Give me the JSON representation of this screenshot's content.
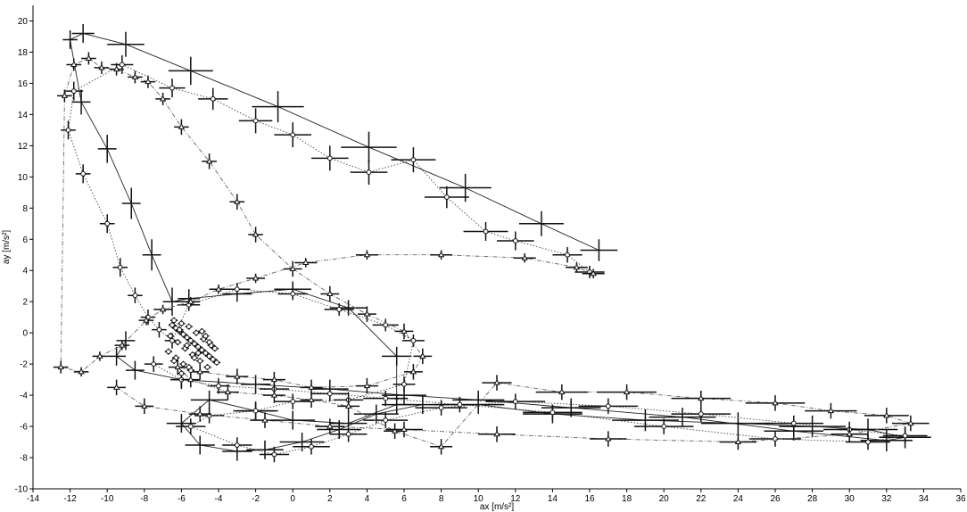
{
  "chart_data": {
    "type": "scatter",
    "xlabel": "ax [m/s²]",
    "ylabel": "ay [m/s²]",
    "xlim": [
      -14,
      36
    ],
    "ylim": [
      -10,
      21
    ],
    "xticks": [
      -14,
      -12,
      -10,
      -8,
      -6,
      -4,
      -2,
      0,
      2,
      4,
      6,
      8,
      10,
      12,
      14,
      16,
      18,
      20,
      22,
      24,
      26,
      28,
      30,
      32,
      34,
      36
    ],
    "yticks": [
      -10,
      -8,
      -6,
      -4,
      -2,
      0,
      2,
      4,
      6,
      8,
      10,
      12,
      14,
      16,
      18,
      20
    ],
    "grid": false,
    "legend": "none",
    "series": [
      {
        "marker": "plus",
        "line_style": "solid",
        "color": "#222222",
        "x": [
          16.5,
          13.4,
          9.3,
          4.1,
          -0.8,
          -5.5,
          -9.0,
          -11.3,
          -12.0,
          -11.4,
          -10.0,
          -8.7,
          -7.6,
          -6.5,
          -5.6,
          -3.0,
          0.0,
          3.0,
          5.6,
          5.6,
          3.0,
          0.0,
          -2.0,
          -4.5,
          -6.0,
          -5.0,
          -3.0,
          -1.5,
          0.5,
          2.5,
          4.5,
          7.0,
          10.0,
          14.0,
          19.0,
          24.0,
          28.0,
          31.0,
          33.0,
          32.0,
          27.0,
          21.0,
          15.0,
          10.0,
          6.0,
          2.0,
          -2.0,
          -6.0,
          -8.5,
          -9.5,
          -9.0
        ],
        "y": [
          5.3,
          7.0,
          9.3,
          11.9,
          14.5,
          16.8,
          18.5,
          19.2,
          18.8,
          14.8,
          11.8,
          8.3,
          5.0,
          2.0,
          2.2,
          2.5,
          2.8,
          1.6,
          -1.5,
          -4.6,
          -5.8,
          -5.6,
          -5.0,
          -4.3,
          -5.8,
          -7.2,
          -7.6,
          -7.5,
          -7.0,
          -6.2,
          -5.2,
          -4.6,
          -4.6,
          -5.2,
          -5.6,
          -5.8,
          -6.0,
          -6.2,
          -6.7,
          -6.9,
          -6.3,
          -5.4,
          -4.8,
          -4.3,
          -4.0,
          -3.6,
          -3.3,
          -3.0,
          -2.4,
          -1.5,
          -0.5
        ],
        "xerr": [
          1.0,
          1.2,
          1.4,
          1.5,
          1.4,
          1.2,
          1.0,
          0.6,
          0.4,
          0.5,
          0.5,
          0.5,
          0.5,
          0.5,
          0.6,
          0.8,
          1.0,
          1.0,
          0.8,
          0.8,
          1.0,
          1.2,
          1.2,
          1.0,
          0.8,
          0.8,
          0.8,
          1.0,
          1.2,
          1.2,
          1.2,
          1.4,
          1.4,
          1.6,
          1.8,
          2.0,
          1.8,
          1.6,
          1.4,
          1.4,
          1.6,
          1.8,
          1.6,
          1.4,
          1.2,
          1.0,
          0.8,
          0.6,
          0.5,
          0.5,
          0.5
        ],
        "yerr": [
          0.7,
          0.8,
          0.9,
          1.0,
          1.0,
          0.9,
          0.8,
          0.6,
          0.6,
          0.8,
          0.9,
          1.0,
          1.0,
          0.9,
          0.6,
          0.5,
          0.5,
          0.5,
          0.6,
          0.6,
          0.6,
          0.6,
          0.6,
          0.6,
          0.6,
          0.6,
          0.6,
          0.6,
          0.6,
          0.6,
          0.6,
          0.6,
          0.6,
          0.6,
          0.7,
          0.7,
          0.7,
          0.7,
          0.7,
          0.7,
          0.6,
          0.6,
          0.6,
          0.6,
          0.6,
          0.6,
          0.6,
          0.6,
          0.6,
          0.6,
          0.6
        ]
      },
      {
        "marker": "circle",
        "line_style": "dotted",
        "color": "#444444",
        "x": [
          16.0,
          14.8,
          12.0,
          10.4,
          8.3,
          6.5,
          4.1,
          2.0,
          0.0,
          -2.0,
          -4.3,
          -6.5,
          -9.2,
          -11.8,
          -12.1,
          -11.3,
          -10.0,
          -9.3,
          -8.5,
          -7.8,
          -7.2,
          -6.5,
          -5.6,
          -3.0,
          0.0,
          2.5,
          5.0,
          6.5,
          6.0,
          3.0,
          0.0,
          -2.0,
          -4.5,
          -5.5,
          -3.0,
          -1.0,
          1.0,
          3.0,
          5.0,
          8.0,
          12.0,
          17.0,
          22.0,
          27.0,
          30.0,
          33.0,
          31.0,
          26.0,
          20.0,
          14.0,
          9.0,
          5.0,
          2.0,
          -1.0,
          -4.0,
          -6.0,
          -7.5
        ],
        "y": [
          3.9,
          5.0,
          5.9,
          6.5,
          8.7,
          11.1,
          10.3,
          11.2,
          12.7,
          13.6,
          15.0,
          15.7,
          17.2,
          15.5,
          13.0,
          10.2,
          7.0,
          4.2,
          2.4,
          1.0,
          0.2,
          -0.5,
          1.8,
          2.8,
          2.5,
          1.5,
          0.5,
          -0.5,
          -3.3,
          -4.3,
          -4.4,
          -5.0,
          -5.3,
          -6.0,
          -7.2,
          -7.8,
          -7.3,
          -6.5,
          -5.6,
          -4.8,
          -4.4,
          -4.7,
          -5.2,
          -5.8,
          -6.2,
          -6.6,
          -7.0,
          -6.8,
          -6.0,
          -5.1,
          -4.6,
          -4.2,
          -3.9,
          -3.6,
          -3.4,
          -3.0,
          -2.0
        ],
        "xerr": [
          0.8,
          0.8,
          1.0,
          1.2,
          1.2,
          1.2,
          1.0,
          1.0,
          1.0,
          0.9,
          0.8,
          0.7,
          0.6,
          0.5,
          0.4,
          0.4,
          0.4,
          0.4,
          0.4,
          0.4,
          0.4,
          0.4,
          0.6,
          0.7,
          0.8,
          0.8,
          0.7,
          0.6,
          0.6,
          0.8,
          1.0,
          1.0,
          0.8,
          0.8,
          0.8,
          0.8,
          1.0,
          1.0,
          1.2,
          1.4,
          1.6,
          1.6,
          1.6,
          1.6,
          1.4,
          1.2,
          1.2,
          1.4,
          1.6,
          1.6,
          1.4,
          1.2,
          1.0,
          0.8,
          0.6,
          0.5,
          0.5
        ],
        "yerr": [
          0.4,
          0.5,
          0.6,
          0.6,
          0.7,
          0.8,
          0.8,
          0.8,
          0.8,
          0.8,
          0.7,
          0.6,
          0.6,
          0.6,
          0.6,
          0.6,
          0.6,
          0.6,
          0.5,
          0.5,
          0.5,
          0.5,
          0.4,
          0.4,
          0.4,
          0.4,
          0.4,
          0.4,
          0.5,
          0.5,
          0.5,
          0.5,
          0.5,
          0.5,
          0.5,
          0.5,
          0.5,
          0.5,
          0.5,
          0.5,
          0.5,
          0.5,
          0.5,
          0.5,
          0.5,
          0.5,
          0.5,
          0.5,
          0.5,
          0.5,
          0.5,
          0.5,
          0.5,
          0.5,
          0.5,
          0.5,
          0.5
        ]
      },
      {
        "marker": "triangle",
        "line_style": "dash-dot",
        "color": "#666666",
        "x": [
          16.2,
          15.3,
          12.5,
          8.0,
          4.0,
          0.7,
          -2.0,
          -4.0,
          -5.5,
          -7.0,
          -7.9,
          -9.2,
          -10.4,
          -11.4,
          -12.5,
          -12.3,
          -11.8,
          -11.0,
          -10.3,
          -9.5,
          -8.5,
          -7.8,
          -7.0,
          -6.0,
          -4.5,
          -3.0,
          -2.0,
          0.0,
          2.0,
          4.0,
          6.0,
          7.0,
          6.5,
          4.0,
          1.0,
          -1.0,
          -3.0,
          -5.0,
          -6.2,
          -5.5,
          -3.5,
          -1.0,
          1.0,
          3.0,
          5.5,
          8.0,
          11.0,
          14.5,
          18.0,
          22.0,
          26.0,
          29.0,
          32.0,
          33.3,
          30.0,
          24.0,
          17.0,
          11.0,
          6.0,
          2.0,
          -1.5,
          -5.0,
          -8.0,
          -9.5
        ],
        "y": [
          3.8,
          4.2,
          4.8,
          5.0,
          5.0,
          4.5,
          3.5,
          2.8,
          2.0,
          1.5,
          0.8,
          -0.8,
          -1.5,
          -2.5,
          -2.2,
          15.2,
          17.2,
          17.6,
          17.0,
          16.9,
          16.4,
          16.1,
          15.0,
          13.2,
          11.0,
          8.4,
          6.3,
          4.1,
          2.5,
          1.2,
          0.1,
          -1.5,
          -2.5,
          -3.4,
          -3.5,
          -3.0,
          -2.8,
          -2.5,
          -2.2,
          -3.0,
          -3.8,
          -4.0,
          -4.3,
          -4.7,
          -6.3,
          -7.3,
          -3.2,
          -3.8,
          -3.8,
          -4.2,
          -4.5,
          -5.0,
          -5.3,
          -5.8,
          -6.5,
          -7.0,
          -6.8,
          -6.5,
          -6.2,
          -6.0,
          -5.6,
          -5.2,
          -4.7,
          -3.5
        ],
        "xerr": [
          0.6,
          0.6,
          0.6,
          0.6,
          0.6,
          0.6,
          0.5,
          0.5,
          0.5,
          0.5,
          0.4,
          0.4,
          0.4,
          0.4,
          0.4,
          0.4,
          0.4,
          0.4,
          0.4,
          0.4,
          0.4,
          0.4,
          0.4,
          0.4,
          0.4,
          0.4,
          0.4,
          0.5,
          0.5,
          0.5,
          0.5,
          0.5,
          0.5,
          0.6,
          0.6,
          0.6,
          0.6,
          0.5,
          0.5,
          0.5,
          0.6,
          0.6,
          0.6,
          0.6,
          0.6,
          0.6,
          0.8,
          1.4,
          1.6,
          1.6,
          1.6,
          1.4,
          1.2,
          1.0,
          1.0,
          1.0,
          1.0,
          1.0,
          1.0,
          0.8,
          0.8,
          0.6,
          0.5,
          0.5
        ],
        "yerr": [
          0.3,
          0.3,
          0.3,
          0.3,
          0.3,
          0.3,
          0.3,
          0.3,
          0.3,
          0.3,
          0.3,
          0.3,
          0.3,
          0.3,
          0.4,
          0.4,
          0.4,
          0.4,
          0.4,
          0.4,
          0.4,
          0.4,
          0.4,
          0.5,
          0.5,
          0.5,
          0.5,
          0.5,
          0.5,
          0.5,
          0.5,
          0.5,
          0.5,
          0.5,
          0.5,
          0.5,
          0.5,
          0.5,
          0.5,
          0.5,
          0.5,
          0.5,
          0.5,
          0.5,
          0.5,
          0.5,
          0.5,
          0.5,
          0.5,
          0.5,
          0.5,
          0.5,
          0.5,
          0.5,
          0.5,
          0.5,
          0.5,
          0.5,
          0.5,
          0.5,
          0.5,
          0.5,
          0.5,
          0.5
        ]
      },
      {
        "marker": "circle",
        "line_style": "none",
        "color": "#333333",
        "x": [
          -6.5,
          -6.3,
          -6.1,
          -5.9,
          -5.7,
          -5.5,
          -5.3,
          -5.1,
          -4.9,
          -4.7,
          -4.5,
          -4.3,
          -4.1,
          -6.6,
          -6.2,
          -5.8,
          -5.4,
          -5.0,
          -4.6,
          -4.2,
          -6.4,
          -6.0,
          -5.6,
          -5.2,
          -4.8,
          -4.4,
          -6.7,
          -6.3,
          -5.9,
          -5.5,
          -5.1,
          -4.7,
          -6.1,
          -5.7,
          -5.3,
          -4.9,
          -4.5,
          -6.4,
          -6.0,
          -5.6
        ],
        "y": [
          0.5,
          0.3,
          0.1,
          -0.1,
          -0.3,
          -0.5,
          -0.7,
          -0.9,
          -1.1,
          -1.3,
          -1.5,
          -1.7,
          -1.9,
          -0.2,
          -0.6,
          -1.0,
          -1.4,
          -1.8,
          -2.2,
          -1.0,
          0.8,
          0.6,
          0.4,
          0.0,
          -0.4,
          -0.8,
          -1.2,
          -1.6,
          -2.0,
          -2.4,
          -1.3,
          -0.2,
          0.2,
          -0.8,
          -1.6,
          0.1,
          -0.6,
          -1.8,
          -2.6,
          -2.2
        ],
        "xerr": [
          0.2,
          0.2,
          0.2,
          0.2,
          0.2,
          0.2,
          0.2,
          0.2,
          0.2,
          0.2,
          0.2,
          0.2,
          0.2,
          0.2,
          0.2,
          0.2,
          0.2,
          0.2,
          0.2,
          0.2,
          0.2,
          0.2,
          0.2,
          0.2,
          0.2,
          0.2,
          0.2,
          0.2,
          0.2,
          0.2,
          0.2,
          0.2,
          0.2,
          0.2,
          0.2,
          0.2,
          0.2,
          0.2,
          0.2,
          0.2
        ],
        "yerr": [
          0.2,
          0.2,
          0.2,
          0.2,
          0.2,
          0.2,
          0.2,
          0.2,
          0.2,
          0.2,
          0.2,
          0.2,
          0.2,
          0.2,
          0.2,
          0.2,
          0.2,
          0.2,
          0.2,
          0.2,
          0.2,
          0.2,
          0.2,
          0.2,
          0.2,
          0.2,
          0.2,
          0.2,
          0.2,
          0.2,
          0.2,
          0.2,
          0.2,
          0.2,
          0.2,
          0.2,
          0.2,
          0.2,
          0.2,
          0.2
        ]
      }
    ]
  }
}
